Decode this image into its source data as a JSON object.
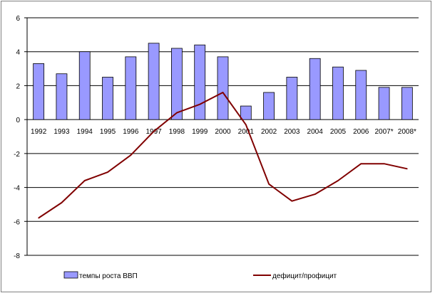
{
  "chart_data": {
    "type": "bar",
    "categories": [
      "1992",
      "1993",
      "1994",
      "1995",
      "1996",
      "1997",
      "1998",
      "1999",
      "2000",
      "2001",
      "2002",
      "2003",
      "2004",
      "2005",
      "2006",
      "2007*",
      "2008*"
    ],
    "series": [
      {
        "name": "темпы роста ВВП",
        "type": "bar",
        "color": "#9999ff",
        "values": [
          3.3,
          2.7,
          4.0,
          2.5,
          3.7,
          4.5,
          4.2,
          4.4,
          3.7,
          0.8,
          1.6,
          2.5,
          3.6,
          3.1,
          2.9,
          1.9,
          1.9
        ]
      },
      {
        "name": "дефицит/профицит",
        "type": "line",
        "color": "#800000",
        "values": [
          -5.8,
          -4.9,
          -3.6,
          -3.1,
          -2.1,
          -0.7,
          0.4,
          0.9,
          1.6,
          -0.3,
          -3.8,
          -4.8,
          -4.4,
          -3.6,
          -2.6,
          -2.6,
          -2.9
        ]
      }
    ],
    "ylim": [
      -8,
      6
    ],
    "yticks": [
      "6",
      "4",
      "2",
      "0",
      "-2",
      "-4",
      "-6",
      "-8"
    ],
    "grid": true,
    "legend_position": "bottom"
  }
}
